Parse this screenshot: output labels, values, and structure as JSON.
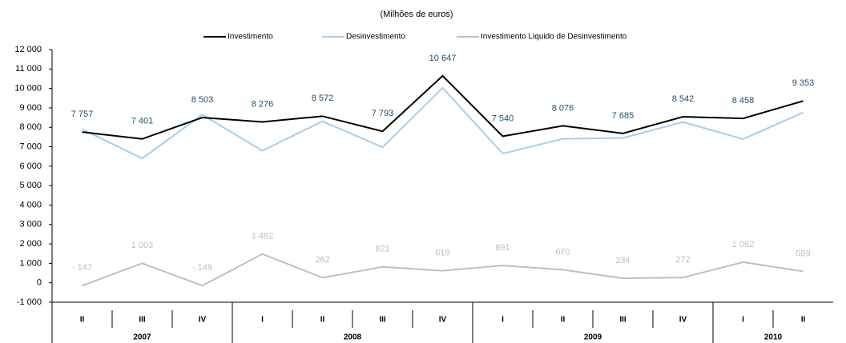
{
  "chart_data": {
    "type": "line",
    "subtitle": "(Milhões de euros)",
    "categories": [
      "II",
      "III",
      "IV",
      "I",
      "II",
      "III",
      "IV",
      "I",
      "II",
      "III",
      "IV",
      "I",
      "II"
    ],
    "category_groups": [
      {
        "label": "2007",
        "count": 3
      },
      {
        "label": "2008",
        "count": 4
      },
      {
        "label": "2009",
        "count": 4
      },
      {
        "label": "2010",
        "count": 2
      }
    ],
    "series": [
      {
        "name": "Investimento",
        "color": "#000000",
        "label_color": "#1f4e6e",
        "values": [
          7757,
          7401,
          8503,
          8276,
          8572,
          7793,
          10647,
          7540,
          8076,
          7685,
          8542,
          8458,
          9353
        ],
        "value_labels": [
          "7 757",
          "7 401",
          "8 503",
          "8 276",
          "8 572",
          "7 793",
          "10 647",
          "7 540",
          "8 076",
          "7 685",
          "8 542",
          "8 458",
          "9 353"
        ]
      },
      {
        "name": "Desinvestimento",
        "color": "#a6cdf0",
        "values": [
          7904,
          6398,
          8652,
          6794,
          8310,
          6972,
          10028,
          6649,
          7406,
          7451,
          8270,
          7396,
          8764
        ]
      },
      {
        "name": "Investimento Liquido de Desinvestimento",
        "color": "#bfbfbf",
        "label_color": "#bfbfbf",
        "values": [
          -147,
          1003,
          -149,
          1482,
          262,
          821,
          619,
          891,
          670,
          234,
          272,
          1062,
          589
        ],
        "value_labels": [
          "- 147",
          "1 003",
          "- 149",
          "1 482",
          "262",
          "821",
          "619",
          "891",
          "670",
          "234",
          "272",
          "1 062",
          "589"
        ]
      }
    ],
    "ylim": [
      -1000,
      12000
    ],
    "yticks": [
      {
        "value": -1000,
        "label": "-1 000"
      },
      0,
      {
        "value": 1000,
        "label": "1 000"
      },
      {
        "value": 2000,
        "label": "2 000"
      },
      {
        "value": 3000,
        "label": "3 000"
      },
      {
        "value": 4000,
        "label": "4 000"
      },
      {
        "value": 5000,
        "label": "5 000"
      },
      {
        "value": 6000,
        "label": "6 000"
      },
      {
        "value": 7000,
        "label": "7 000"
      },
      {
        "value": 8000,
        "label": "8 000"
      },
      {
        "value": 9000,
        "label": "9 000"
      },
      {
        "value": 10000,
        "label": "10 000"
      },
      {
        "value": 11000,
        "label": "11 000"
      },
      {
        "value": 12000,
        "label": "12 000"
      }
    ],
    "legend": "top"
  }
}
